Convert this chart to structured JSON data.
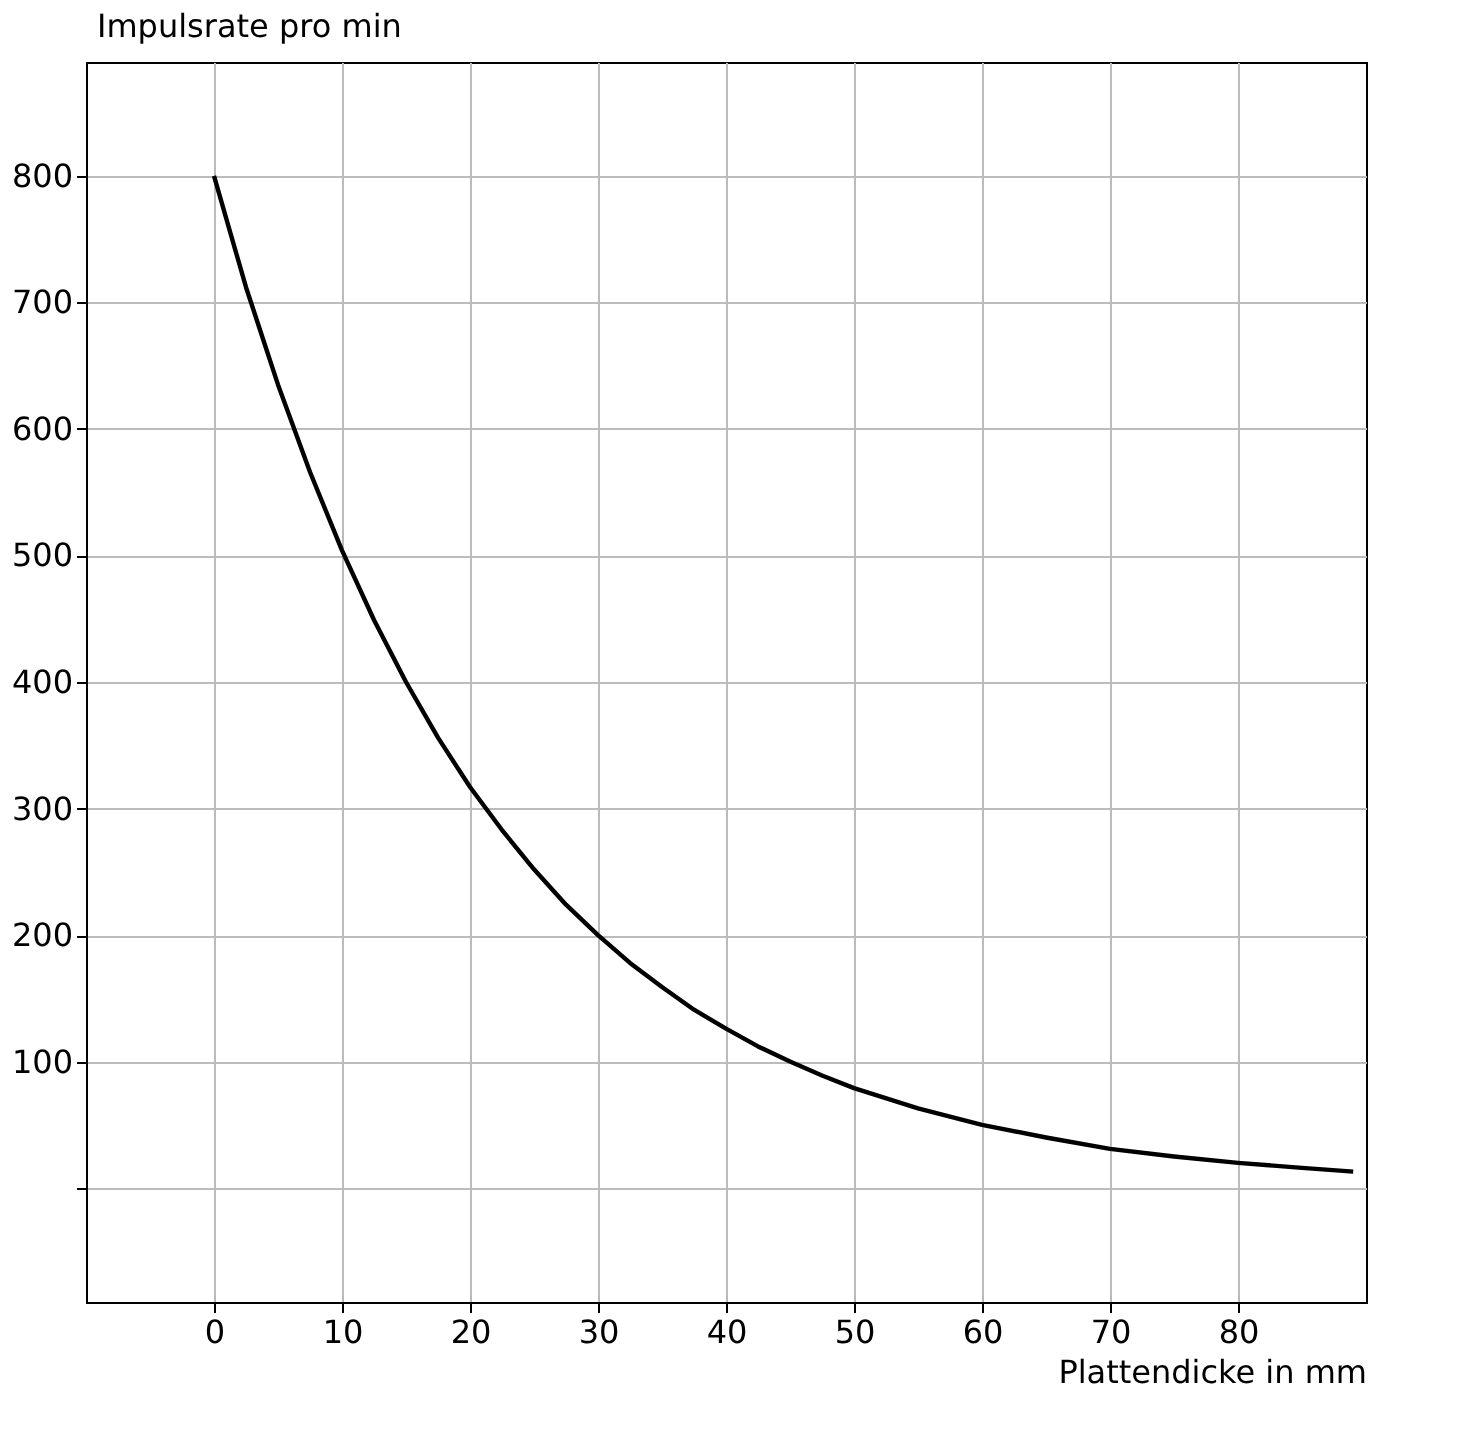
{
  "chart_data": {
    "type": "line",
    "xlabel": "Plattendicke in mm",
    "ylabel": "Impulsrate pro min",
    "x": [
      0,
      2.5,
      5,
      7.5,
      10,
      12.5,
      15,
      17.5,
      20,
      22.5,
      25,
      27.5,
      30,
      32.5,
      35,
      37.5,
      40,
      42.5,
      45,
      47.5,
      50,
      55,
      60,
      65,
      70,
      75,
      80,
      85,
      89
    ],
    "series": [
      {
        "color": "#000000",
        "values": [
          800,
          712,
          635,
          566,
          504,
          449,
          400,
          356,
          317,
          283,
          252,
          224,
          200,
          178,
          159,
          141,
          126,
          112,
          100,
          89,
          79,
          63,
          50,
          40,
          31,
          25,
          20,
          16,
          13
        ]
      }
    ],
    "xlim": [
      -10,
      90
    ],
    "ylim": [
      -90,
      890
    ],
    "xticks": [
      0,
      10,
      20,
      30,
      40,
      50,
      60,
      70,
      80
    ],
    "yticks": [
      {
        "value": 0,
        "label": null
      },
      100,
      200,
      300,
      400,
      500,
      600,
      700,
      800
    ],
    "grid": true,
    "marker": "none",
    "line_style": "solid"
  }
}
